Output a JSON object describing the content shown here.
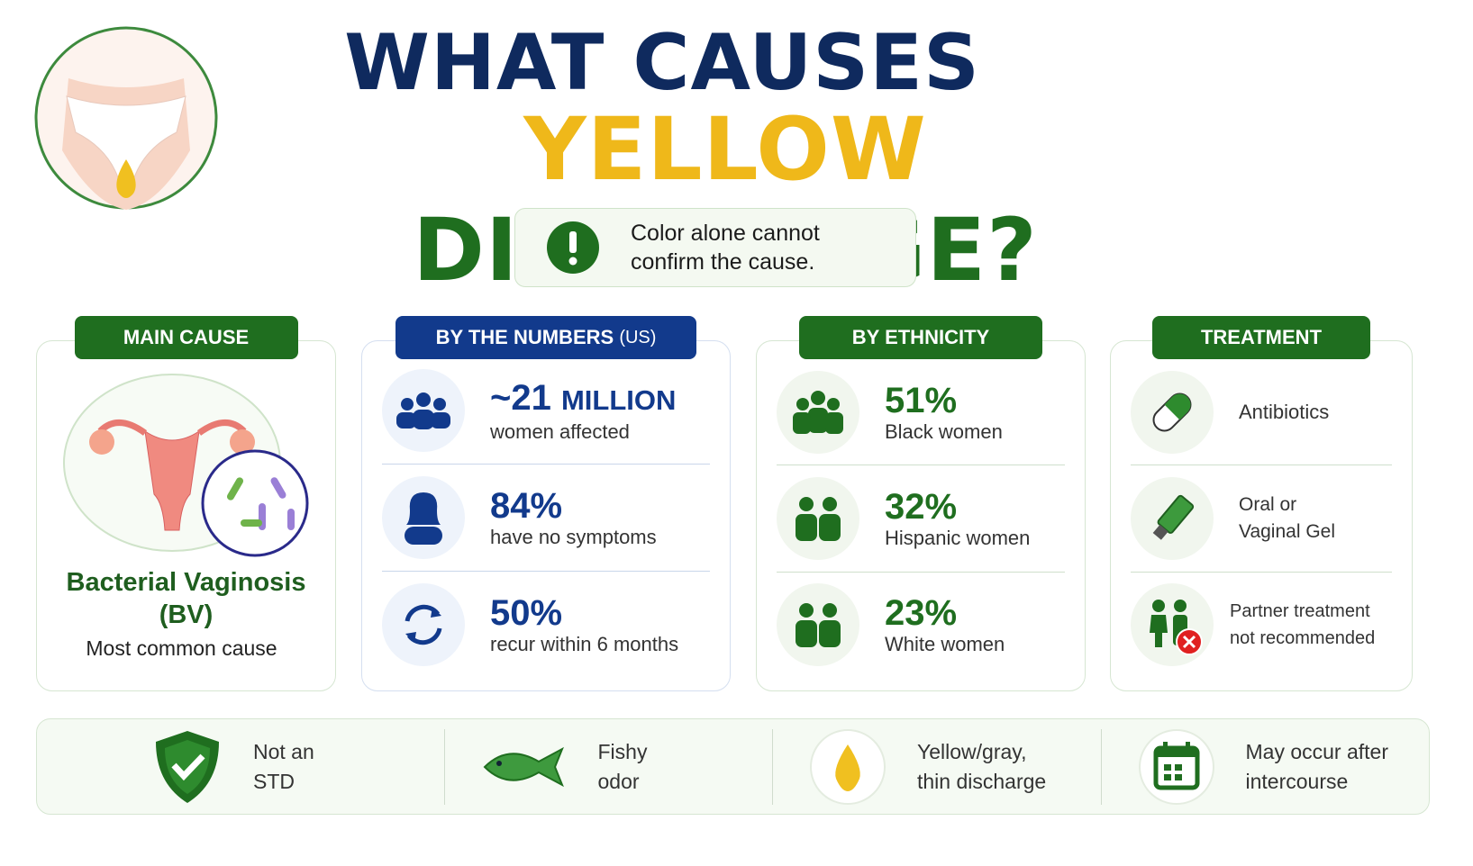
{
  "header": {
    "title_line1": "WHAT CAUSES",
    "title_yellow": "YELLOW",
    "title_green": "DISCHARGE?"
  },
  "alert": {
    "lines": [
      "Color alone cannot",
      "confirm the cause."
    ]
  },
  "main_cause": {
    "heading": "MAIN CAUSE",
    "name_lines": [
      "Bacterial Vaginosis",
      "(BV)"
    ],
    "caption": "Most common cause"
  },
  "numbers": {
    "heading": "BY THE NUMBERS",
    "heading_note": "(US)",
    "rows": [
      {
        "figure": "~21",
        "unit": "MILLION",
        "caption": "women affected"
      },
      {
        "figure": "84%",
        "caption": "have no symptoms"
      },
      {
        "figure": "50%",
        "caption": "recur within 6 months"
      }
    ]
  },
  "ethnicity": {
    "heading": "BY ETHNICITY",
    "rows": [
      {
        "figure": "51%",
        "caption": "Black women"
      },
      {
        "figure": "32%",
        "caption": "Hispanic women"
      },
      {
        "figure": "23%",
        "caption": "White women"
      }
    ]
  },
  "treatment": {
    "heading": "TREATMENT",
    "rows": [
      {
        "lines": [
          "Antibiotics"
        ]
      },
      {
        "lines": [
          "Oral or",
          "Vaginal Gel"
        ]
      },
      {
        "lines": [
          "Partner treatment",
          "not recommended"
        ]
      }
    ]
  },
  "facts": [
    {
      "lines": [
        "Not an",
        "STD"
      ]
    },
    {
      "lines": [
        "Fishy",
        "odor"
      ]
    },
    {
      "lines": [
        "Yellow/gray,",
        "thin discharge"
      ]
    },
    {
      "lines": [
        "May occur after",
        "intercourse"
      ]
    }
  ]
}
